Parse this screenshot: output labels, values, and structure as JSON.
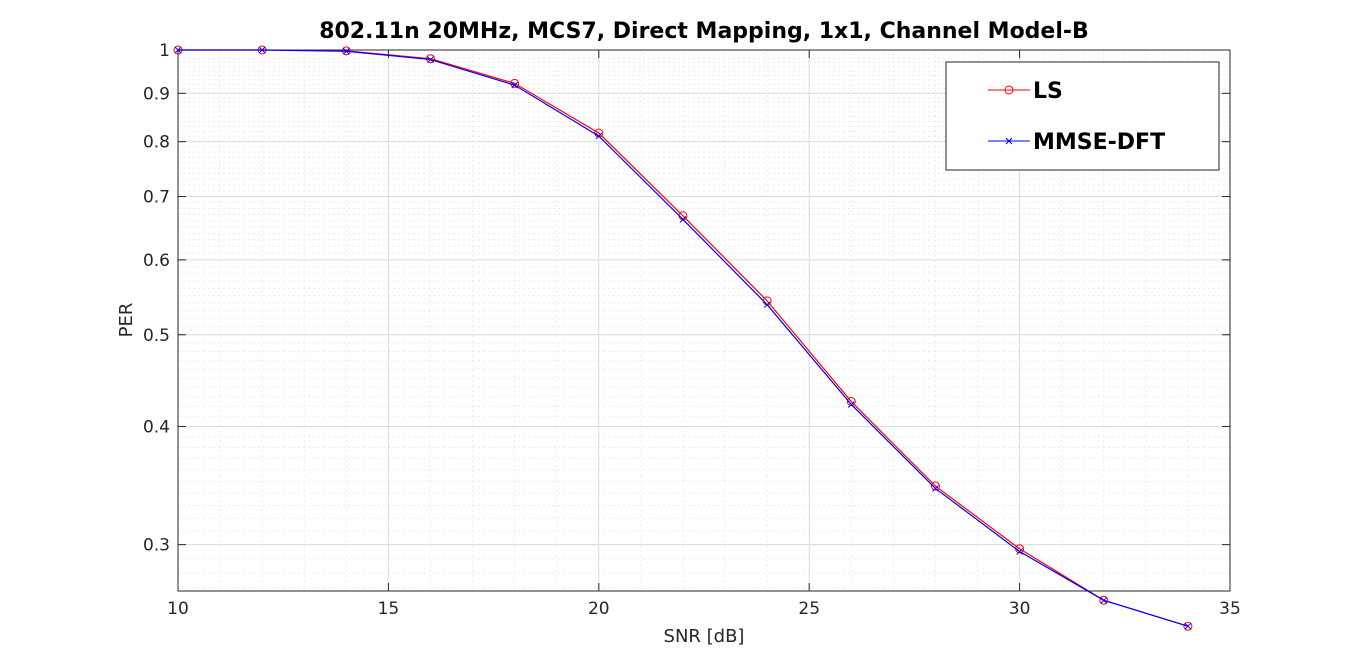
{
  "chart_data": {
    "type": "line",
    "title": "802.11n 20MHz, MCS7, Direct Mapping, 1x1, Channel Model-B",
    "xlabel": "SNR [dB]",
    "ylabel": "PER",
    "xlim": [
      10,
      35
    ],
    "ylim": [
      0.268,
      1.0
    ],
    "yscale": "log",
    "grid": true,
    "minor_grid": true,
    "legend_position": "top-right",
    "x_ticks": [
      "10",
      "15",
      "20",
      "25",
      "30",
      "35"
    ],
    "y_ticks": [
      "0.3",
      "0.4",
      "0.5",
      "0.6",
      "0.7",
      "0.8",
      "0.9",
      "1"
    ],
    "x": [
      10,
      12,
      14,
      16,
      18,
      20,
      22,
      24,
      26,
      28,
      30,
      32,
      34
    ],
    "series": [
      {
        "name": "LS",
        "color": "#ff0000",
        "marker": "circle",
        "values": [
          1.0,
          1.0,
          0.998,
          0.979,
          0.922,
          0.817,
          0.668,
          0.543,
          0.425,
          0.346,
          0.297,
          0.262,
          0.246
        ]
      },
      {
        "name": "MMSE-DFT",
        "color": "#0000ff",
        "marker": "x",
        "values": [
          1.0,
          1.0,
          0.997,
          0.977,
          0.918,
          0.811,
          0.662,
          0.538,
          0.422,
          0.344,
          0.295,
          0.262,
          0.246
        ]
      }
    ]
  }
}
